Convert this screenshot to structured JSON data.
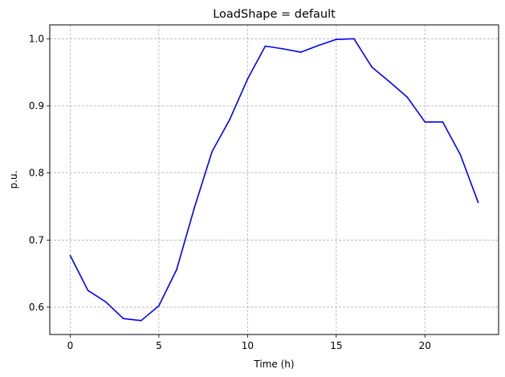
{
  "chart_data": {
    "type": "line",
    "title": "LoadShape = default",
    "xlabel": "Time (h)",
    "ylabel": "p.u.",
    "xlim": [
      -1.15,
      24.15
    ],
    "ylim": [
      0.5593,
      1.0207
    ],
    "xticks": [
      0,
      5,
      10,
      15,
      20
    ],
    "xtick_labels": [
      "0",
      "5",
      "10",
      "15",
      "20"
    ],
    "yticks": [
      0.6,
      0.7,
      0.8,
      0.9,
      1.0
    ],
    "ytick_labels": [
      "0.6",
      "0.7",
      "0.8",
      "0.9",
      "1.0"
    ],
    "grid": true,
    "x": [
      0,
      1,
      2,
      3,
      4,
      5,
      6,
      7,
      8,
      9,
      10,
      11,
      12,
      13,
      14,
      15,
      16,
      17,
      18,
      19,
      20,
      21,
      22,
      23
    ],
    "series": [
      {
        "color": "#0000ff",
        "values": [
          0.677,
          0.625,
          0.608,
          0.583,
          0.58,
          0.602,
          0.656,
          0.748,
          0.832,
          0.88,
          0.94,
          0.989,
          0.985,
          0.98,
          0.99,
          0.999,
          1.0,
          0.958,
          0.936,
          0.913,
          0.876,
          0.876,
          0.827,
          0.756
        ]
      }
    ]
  }
}
